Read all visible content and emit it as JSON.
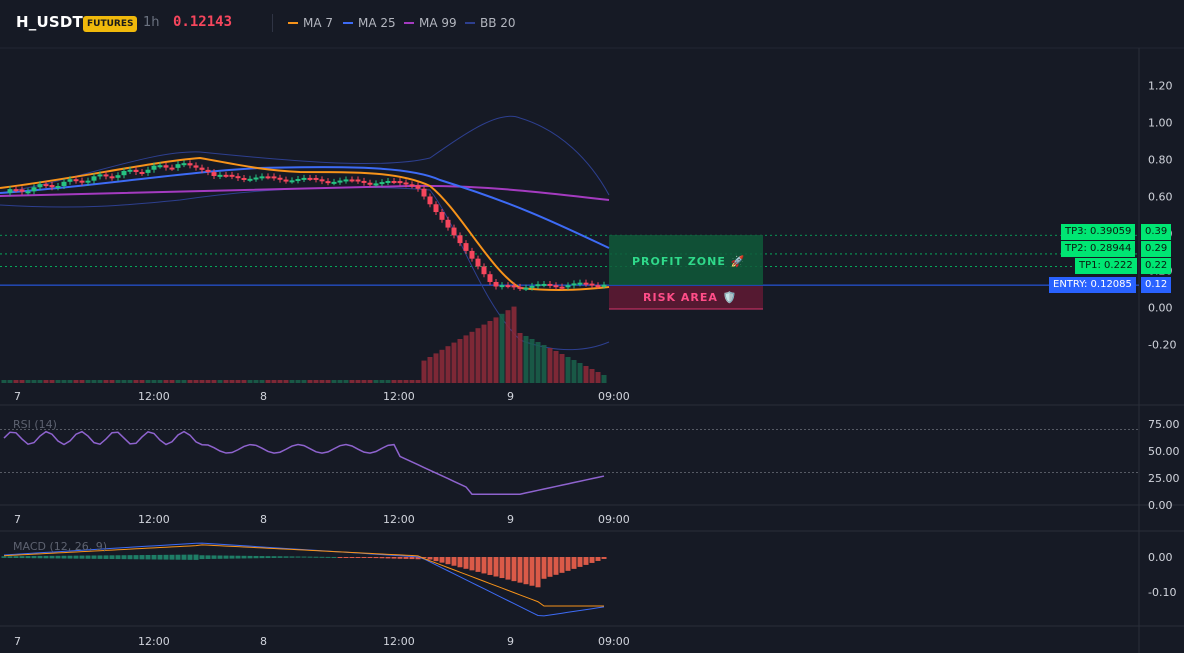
{
  "header": {
    "symbol": "H_USDT",
    "badge": "FUTURES",
    "timeframe": "1h",
    "price": "0.12143",
    "legend": [
      {
        "label": "MA 7",
        "color": "#f7931a"
      },
      {
        "label": "MA 25",
        "color": "#3d6bf5"
      },
      {
        "label": "MA 99",
        "color": "#a43bc0"
      },
      {
        "label": "BB 20",
        "color": "#2d3f8f"
      }
    ]
  },
  "price_axis": [
    "1.20",
    "1.00",
    "0.80",
    "0.60",
    "0.40",
    "0.20",
    "0.00",
    "-0.20"
  ],
  "time_axis": [
    "7",
    "12:00",
    "8",
    "12:00",
    "9",
    "09:00"
  ],
  "rsi": {
    "label": "RSI (14)",
    "axis": [
      "75.00",
      "50.00",
      "25.00",
      "0.00"
    ],
    "overbought": 70,
    "oversold": 30
  },
  "macd": {
    "label": "MACD (12, 26, 9)",
    "axis": [
      "0.00",
      "-0.10"
    ]
  },
  "zones": {
    "profit": "PROFIT ZONE 🚀",
    "risk": "RISK AREA 🛡️"
  },
  "levels": [
    {
      "label": "TP3: 0.39059",
      "value": "0.39",
      "price": 0.39059,
      "kind": "tp"
    },
    {
      "label": "TP2: 0.28944",
      "value": "0.29",
      "price": 0.28944,
      "kind": "tp"
    },
    {
      "label": "TP1: 0.222",
      "value": "0.22",
      "price": 0.222,
      "kind": "tp"
    },
    {
      "label": "ENTRY: 0.12085",
      "value": "0.12",
      "price": 0.12085,
      "kind": "entry"
    }
  ],
  "colors": {
    "up": "#26c281",
    "down": "#f6465d",
    "ma7": "#f7931a",
    "ma25": "#3d6bf5",
    "ma99": "#a43bc0",
    "bb": "#2d3f8f",
    "rsi": "#8e63ce",
    "macd_line": "#3d6bf5",
    "signal_line": "#f7931a",
    "tp_line": "#00e673",
    "entry_line": "#2962ff"
  }
}
